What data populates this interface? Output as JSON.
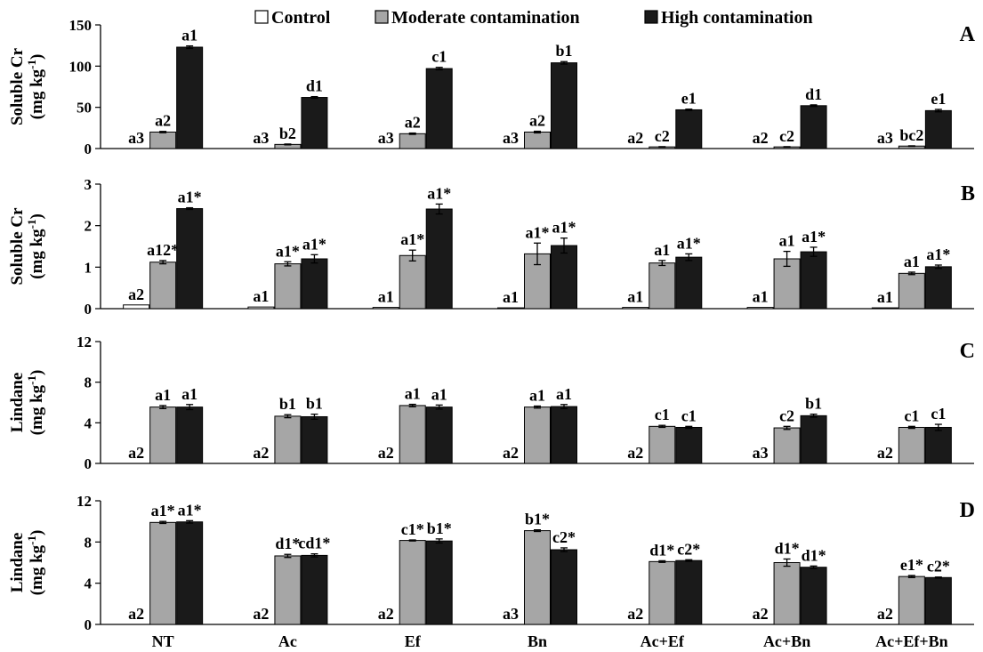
{
  "chart_data": {
    "type": "bar",
    "categories": [
      "NT",
      "Ac",
      "Ef",
      "Bn",
      "Ac+Ef",
      "Ac+Bn",
      "Ac+Ef+Bn"
    ],
    "legend": {
      "placement": "top-center",
      "entries": [
        "Control",
        "Moderate contamination",
        "High contamination"
      ]
    },
    "series_colors": [
      "#ffffff",
      "#a6a6a6",
      "#1a1a1a"
    ],
    "panels": [
      {
        "id": "A",
        "ylabel_line1": "Soluble Cr",
        "ylabel_unit": "(mg kg",
        "ylabel_sup": "-1",
        "ylabel_close": ")",
        "ylim": [
          0,
          150
        ],
        "yticks": [
          "0",
          "50",
          "100",
          "150"
        ],
        "series": [
          {
            "name": "Control",
            "values": [
              0,
              0,
              0,
              0,
              0,
              0,
              0
            ],
            "errors": [
              0,
              0,
              0,
              0,
              0,
              0,
              0
            ],
            "labels": [
              "a3",
              "a3",
              "a3",
              "a3",
              "a2",
              "a2",
              "a3"
            ]
          },
          {
            "name": "Moderate contamination",
            "values": [
              20,
              5,
              18,
              20,
              2,
              2,
              3
            ],
            "errors": [
              0.8,
              0.5,
              0.8,
              1,
              0.3,
              0.3,
              0.3
            ],
            "labels": [
              "a2",
              "b2",
              "a2",
              "a2",
              "c2",
              "c2",
              "bc2"
            ]
          },
          {
            "name": "High contamination",
            "values": [
              123,
              62,
              97,
              104,
              47,
              52,
              46
            ],
            "errors": [
              1.5,
              1,
              1.5,
              1.5,
              0.8,
              1,
              1.5
            ],
            "labels": [
              "a1",
              "d1",
              "c1",
              "b1",
              "e1",
              "d1",
              "e1"
            ]
          }
        ]
      },
      {
        "id": "B",
        "ylabel_line1": "Soluble Cr",
        "ylabel_unit": "(mg kg",
        "ylabel_sup": "-1",
        "ylabel_close": ")",
        "ylim": [
          0,
          3
        ],
        "yticks": [
          "0",
          "1",
          "2",
          "3"
        ],
        "series": [
          {
            "name": "Control",
            "values": [
              0.09,
              0.04,
              0.03,
              0.02,
              0.03,
              0.03,
              0.02
            ],
            "errors": [
              0,
              0,
              0,
              0,
              0,
              0,
              0
            ],
            "labels": [
              "a2",
              "a1",
              "a1",
              "a1",
              "a1",
              "a1",
              "a1"
            ]
          },
          {
            "name": "Moderate contamination",
            "values": [
              1.12,
              1.08,
              1.28,
              1.32,
              1.1,
              1.2,
              0.85
            ],
            "errors": [
              0.04,
              0.05,
              0.13,
              0.26,
              0.06,
              0.18,
              0.03
            ],
            "labels": [
              "a12*",
              "a1*",
              "a1*",
              "a1*",
              "a1",
              "a1",
              "a1"
            ]
          },
          {
            "name": "High contamination",
            "values": [
              2.41,
              1.2,
              2.4,
              1.52,
              1.24,
              1.37,
              1.01
            ],
            "errors": [
              0.02,
              0.1,
              0.12,
              0.18,
              0.08,
              0.11,
              0.04
            ],
            "labels": [
              "a1*",
              "a1*",
              "a1*",
              "a1*",
              "a1*",
              "a1*",
              "a1*"
            ]
          }
        ]
      },
      {
        "id": "C",
        "ylabel_line1": "Lindane",
        "ylabel_unit": "(mg kg",
        "ylabel_sup": "-1",
        "ylabel_close": ")",
        "ylim": [
          0,
          12
        ],
        "yticks": [
          "0",
          "4",
          "8",
          "12"
        ],
        "series": [
          {
            "name": "Control",
            "values": [
              0,
              0,
              0,
              0,
              0,
              0,
              0
            ],
            "errors": [
              0,
              0,
              0,
              0,
              0,
              0,
              0
            ],
            "labels": [
              "a2",
              "a2",
              "a2",
              "a2",
              "a2",
              "a3",
              "a2"
            ]
          },
          {
            "name": "Moderate contamination",
            "values": [
              5.55,
              4.65,
              5.7,
              5.55,
              3.65,
              3.5,
              3.55
            ],
            "errors": [
              0.15,
              0.15,
              0.12,
              0.1,
              0.1,
              0.15,
              0.1
            ],
            "labels": [
              "a1",
              "b1",
              "a1",
              "a1",
              "c1",
              "c2",
              "c1"
            ]
          },
          {
            "name": "High contamination",
            "values": [
              5.55,
              4.6,
              5.55,
              5.6,
              3.55,
              4.7,
              3.55
            ],
            "errors": [
              0.25,
              0.25,
              0.2,
              0.2,
              0.1,
              0.15,
              0.3
            ],
            "labels": [
              "a1",
              "b1",
              "a1",
              "a1",
              "c1",
              "b1",
              "c1"
            ]
          }
        ]
      },
      {
        "id": "D",
        "ylabel_line1": "Lindane",
        "ylabel_unit": "(mg kg",
        "ylabel_sup": "-1",
        "ylabel_close": ")",
        "ylim": [
          0,
          12
        ],
        "yticks": [
          "0",
          "4",
          "8",
          "12"
        ],
        "series": [
          {
            "name": "Control",
            "values": [
              0,
              0,
              0,
              0,
              0,
              0,
              0
            ],
            "errors": [
              0,
              0,
              0,
              0,
              0,
              0,
              0
            ],
            "labels": [
              "a2",
              "a2",
              "a2",
              "a3",
              "a2",
              "a2",
              "a2"
            ]
          },
          {
            "name": "Moderate contamination",
            "values": [
              9.9,
              6.65,
              8.15,
              9.1,
              6.1,
              6.0,
              4.65
            ],
            "errors": [
              0.1,
              0.15,
              0.05,
              0.08,
              0.08,
              0.35,
              0.1
            ],
            "labels": [
              "a1*",
              "d1*",
              "c1*",
              "b1*",
              "d1*",
              "d1*",
              "e1*"
            ]
          },
          {
            "name": "High contamination",
            "values": [
              9.95,
              6.7,
              8.1,
              7.25,
              6.2,
              5.55,
              4.55
            ],
            "errors": [
              0.12,
              0.15,
              0.2,
              0.18,
              0.08,
              0.12,
              0.05
            ],
            "labels": [
              "a1*",
              "cd1*",
              "b1*",
              "c2*",
              "c2*",
              "d1*",
              "c2*"
            ]
          }
        ]
      }
    ]
  }
}
